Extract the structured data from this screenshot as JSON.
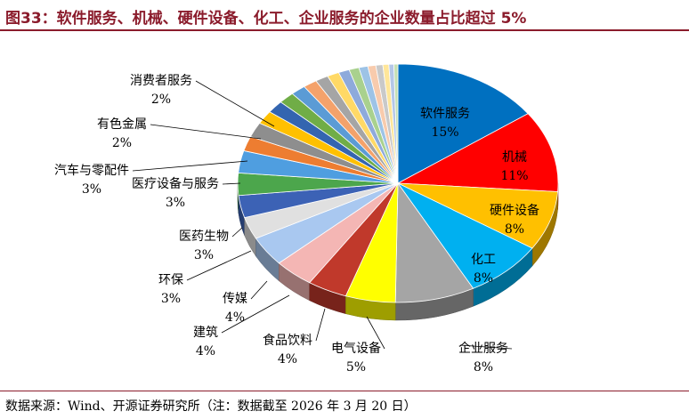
{
  "title": "图33：软件服务、机械、硬件设备、化工、企业服务的企业数量占比超过 5%",
  "source": "数据来源：Wind、开源证券研究所（注：数据截至 2026 年 3 月 20 日）",
  "chart_data": {
    "type": "pie",
    "title": "图33：软件服务、机械、硬件设备、化工、企业服务的企业数量占比超过 5%",
    "slices": [
      {
        "label": "软件服务",
        "value": 15,
        "value_label": "15%",
        "color": "#0070c0"
      },
      {
        "label": "机械",
        "value": 11,
        "value_label": "11%",
        "color": "#ff0000"
      },
      {
        "label": "硬件设备",
        "value": 8,
        "value_label": "8%",
        "color": "#ffc000"
      },
      {
        "label": "化工",
        "value": 8,
        "value_label": "8%",
        "color": "#00b0f0"
      },
      {
        "label": "企业服务",
        "value": 8,
        "value_label": "8%",
        "color": "#a5a5a5"
      },
      {
        "label": "电气设备",
        "value": 5,
        "value_label": "5%",
        "color": "#ffff00"
      },
      {
        "label": "食品饮料",
        "value": 4,
        "value_label": "4%",
        "color": "#c0392b"
      },
      {
        "label": "建筑",
        "value": 4,
        "value_label": "4%",
        "color": "#f4b6b4"
      },
      {
        "label": "传媒",
        "value": 4,
        "value_label": "4%",
        "color": "#a9c8f0"
      },
      {
        "label": "环保",
        "value": 3,
        "value_label": "3%",
        "color": "#e0e0e0"
      },
      {
        "label": "医药生物",
        "value": 3,
        "value_label": "3%",
        "color": "#3c62b5"
      },
      {
        "label": "医疗设备与服务",
        "value": 3,
        "value_label": "3%",
        "color": "#4ca64c"
      },
      {
        "label": "汽车与零配件",
        "value": 3,
        "value_label": "3%",
        "color": "#4f9ee0"
      },
      {
        "label": "有色金属",
        "value": 2,
        "value_label": "2%",
        "color": "#ed7d31"
      },
      {
        "label": "消费者服务",
        "value": 2,
        "value_label": "2%",
        "color": "#8e8e8e"
      },
      {
        "label": "",
        "value": 1.8,
        "value_label": "",
        "color": "#ffc000"
      },
      {
        "label": "",
        "value": 1.7,
        "value_label": "",
        "color": "#3465b0"
      },
      {
        "label": "",
        "value": 1.6,
        "value_label": "",
        "color": "#70ad47"
      },
      {
        "label": "",
        "value": 1.5,
        "value_label": "",
        "color": "#5b9bd5"
      },
      {
        "label": "",
        "value": 1.4,
        "value_label": "",
        "color": "#f4a26b"
      },
      {
        "label": "",
        "value": 1.3,
        "value_label": "",
        "color": "#a5a5a5"
      },
      {
        "label": "",
        "value": 1.2,
        "value_label": "",
        "color": "#ffd966"
      },
      {
        "label": "",
        "value": 1.1,
        "value_label": "",
        "color": "#8eaadb"
      },
      {
        "label": "",
        "value": 1.0,
        "value_label": "",
        "color": "#a9d18e"
      },
      {
        "label": "",
        "value": 0.9,
        "value_label": "",
        "color": "#9dc3e6"
      },
      {
        "label": "",
        "value": 0.8,
        "value_label": "",
        "color": "#f8cbad"
      },
      {
        "label": "",
        "value": 0.7,
        "value_label": "",
        "color": "#c9c9c9"
      },
      {
        "label": "",
        "value": 0.6,
        "value_label": "",
        "color": "#ffe699"
      },
      {
        "label": "",
        "value": 0.5,
        "value_label": "",
        "color": "#b4c7e7"
      },
      {
        "label": "",
        "value": 0.4,
        "value_label": "",
        "color": "#c5e0b4"
      }
    ]
  }
}
